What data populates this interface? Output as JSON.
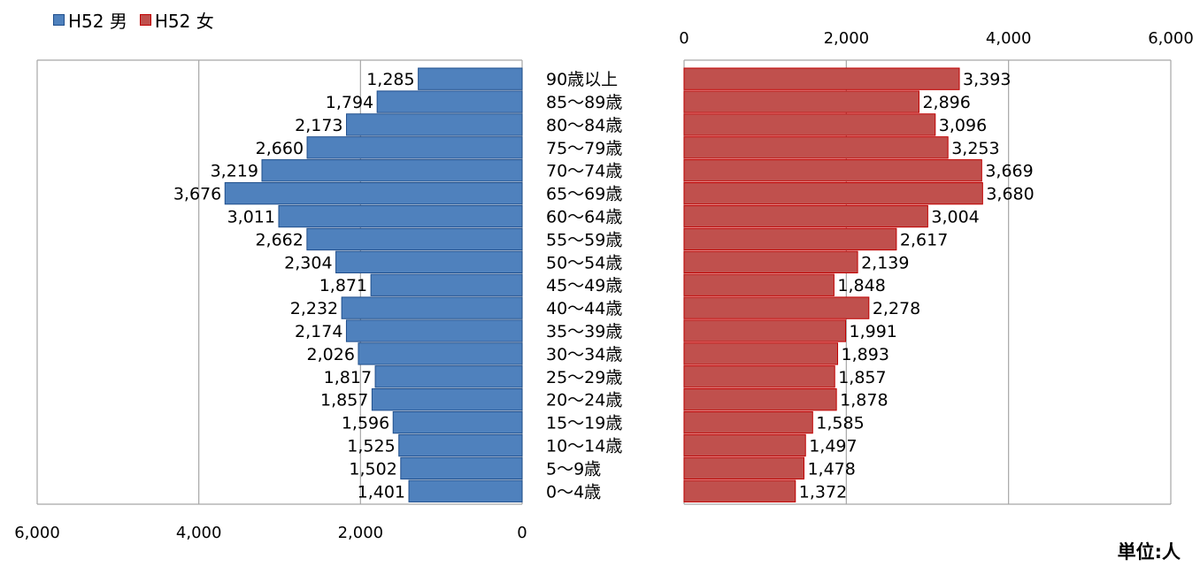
{
  "chart_data": {
    "type": "bar",
    "orientation": "horizontal",
    "layout": "population-pyramid",
    "categories": [
      "90歳以上",
      "85～89歳",
      "80～84歳",
      "75～79歳",
      "70～74歳",
      "65～69歳",
      "60～64歳",
      "55～59歳",
      "50～54歳",
      "45～49歳",
      "40～44歳",
      "35～39歳",
      "30～34歳",
      "25～29歳",
      "20～24歳",
      "15～19歳",
      "10～14歳",
      "5～9歳",
      "0～4歳"
    ],
    "series": [
      {
        "name": "H52 男",
        "color": "#4f81bd",
        "edge": "#1f4e8c",
        "values": [
          1285,
          1794,
          2173,
          2660,
          3219,
          3676,
          3011,
          2662,
          2304,
          1871,
          2232,
          2174,
          2026,
          1817,
          1857,
          1596,
          1525,
          1502,
          1401
        ]
      },
      {
        "name": "H52 女",
        "color": "#c0504d",
        "edge": "#c00000",
        "values": [
          3393,
          2896,
          3096,
          3253,
          3669,
          3680,
          3004,
          2617,
          2139,
          1848,
          2278,
          1991,
          1893,
          1857,
          1878,
          1585,
          1497,
          1478,
          1372
        ]
      }
    ],
    "xlim": [
      0,
      6000
    ],
    "ticks": [
      0,
      2000,
      4000,
      6000
    ],
    "tick_labels": [
      "0",
      "2,000",
      "4,000",
      "6,000"
    ],
    "male_axis_position": "bottom",
    "female_axis_position": "top",
    "grid": true,
    "legend": "top-left",
    "unit": "単位:人"
  }
}
